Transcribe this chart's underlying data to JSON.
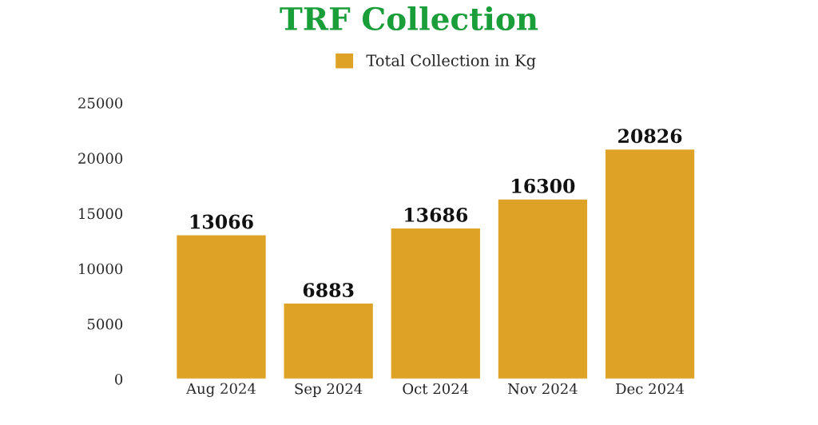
{
  "chart_data": {
    "type": "bar",
    "title": "TRF Collection",
    "categories": [
      "Aug 2024",
      "Sep 2024",
      "Oct 2024",
      "Nov 2024",
      "Dec 2024"
    ],
    "series": [
      {
        "name": "Total Collection in Kg",
        "color": "#dea326",
        "values": [
          13066,
          6883,
          13686,
          16300,
          20826
        ]
      }
    ],
    "ylim": [
      0,
      25000
    ],
    "yticks": [
      0,
      5000,
      10000,
      15000,
      20000,
      25000
    ],
    "data_labels": true,
    "legend": "top",
    "grid": false
  }
}
